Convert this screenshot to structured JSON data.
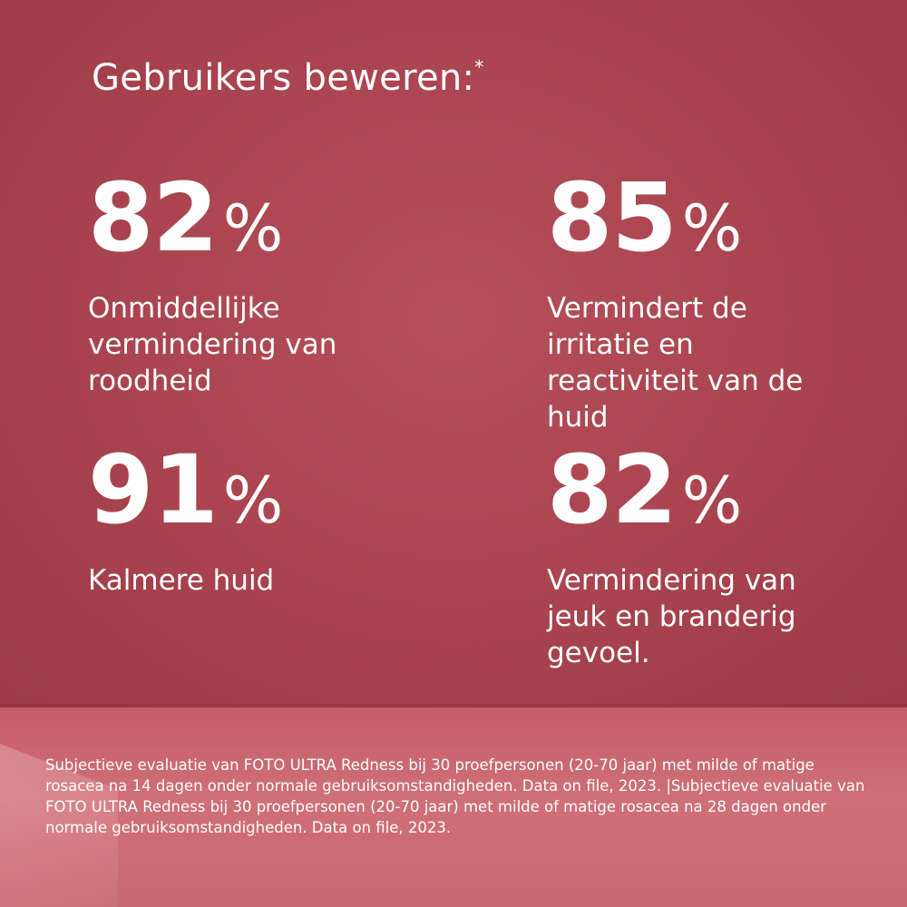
{
  "headline": {
    "text": "Gebruikers beweren:",
    "asterisk": "*"
  },
  "stats": [
    {
      "value": "82",
      "unit": "%",
      "label": "Onmiddellijke vermindering van roodheid"
    },
    {
      "value": "85",
      "unit": "%",
      "label": "Vermindert de irritatie en reactiviteit van de huid"
    },
    {
      "value": "91",
      "unit": "%",
      "label": "Kalmere huid"
    },
    {
      "value": "82",
      "unit": "%",
      "label": "Vermindering van jeuk en branderig gevoel."
    }
  ],
  "disclaimer": "Subjectieve evaluatie van FOTO ULTRA Redness bij 30 proefpersonen (20-70 jaar) met milde of matige rosacea na 14 dagen onder normale gebruiksomstandigheden. Data on file, 2023. |Subjectieve evaluatie van FOTO ULTRA Redness bij 30 proefpersonen (20-70 jaar) met milde of matige rosacea na 28 dagen onder normale gebruiksomstandigheden. Data on file, 2023.",
  "colors": {
    "background": "#a8434f",
    "floor": "#cf6f76",
    "text": "#ffffff"
  }
}
